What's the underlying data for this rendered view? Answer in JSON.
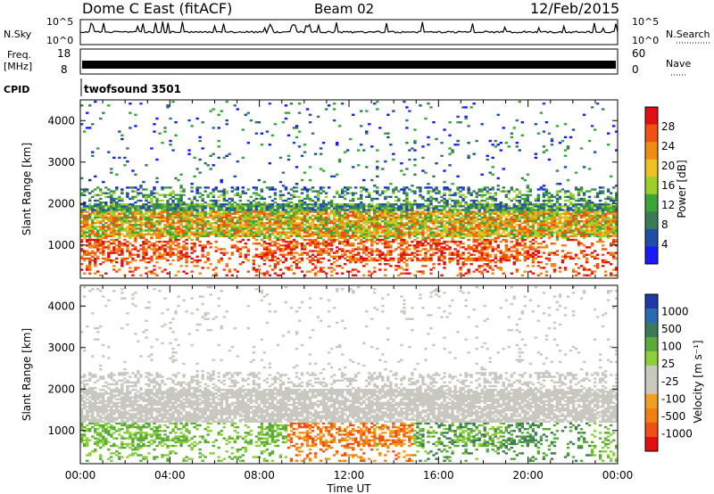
{
  "header": {
    "title": "Dome C East (fitACF)",
    "beam": "Beam 02",
    "date": "12/Feb/2015"
  },
  "top_panels": {
    "nsky_label": "N.Sky",
    "nsearch_label": "N.Search",
    "nsky_ticks": [
      "10^5",
      "10^0"
    ],
    "nsearch_ticks": [
      "10^5",
      "10^0"
    ],
    "freq_label": "Freq.",
    "freq_unit": "[MHz]",
    "freq_ticks": [
      "18",
      "8"
    ],
    "nave_label": "Nave",
    "nave_ticks": [
      "60",
      "0"
    ],
    "cpid_label": "CPID",
    "cpid_value": "twofsound 3501"
  },
  "colors": {
    "power": [
      "#1a1aff",
      "#1f4ea8",
      "#3c7a5a",
      "#3aa63a",
      "#9ccf2a",
      "#f0c020",
      "#f08a10",
      "#f05010",
      "#e01010"
    ],
    "velocity": [
      "#1f3aa8",
      "#2a6ab0",
      "#3c7a5a",
      "#5aaa3a",
      "#8ccf3a",
      "#c8c8c0",
      "#c8c8c0",
      "#f0a020",
      "#f08010",
      "#f05010",
      "#e01010"
    ]
  },
  "chart_data": [
    {
      "type": "heatmap",
      "title": "",
      "xlabel": "",
      "ylabel": "Slant Range [km]",
      "x_ticks": [
        "00:00",
        "04:00",
        "08:00",
        "12:00",
        "16:00",
        "20:00",
        "00:00"
      ],
      "y_ticks": [
        "1000",
        "2000",
        "3000",
        "4000"
      ],
      "ylim": [
        200,
        4500
      ],
      "colorbar_label": "Power [dB]",
      "colorbar_ticks": [
        "4",
        "8",
        "12",
        "16",
        "20",
        "24",
        "28"
      ],
      "colorbar_range": [
        0,
        32
      ]
    },
    {
      "type": "heatmap",
      "title": "",
      "xlabel": "Time UT",
      "ylabel": "Slant Range [km]",
      "x_ticks": [
        "00:00",
        "04:00",
        "08:00",
        "12:00",
        "16:00",
        "20:00",
        "00:00"
      ],
      "y_ticks": [
        "1000",
        "2000",
        "3000",
        "4000"
      ],
      "ylim": [
        200,
        4500
      ],
      "colorbar_label": "Velocity [m s⁻¹]",
      "colorbar_ticks": [
        "1000",
        "500",
        "100",
        "25",
        "-25",
        "-100",
        "-500",
        "-1000"
      ]
    }
  ]
}
